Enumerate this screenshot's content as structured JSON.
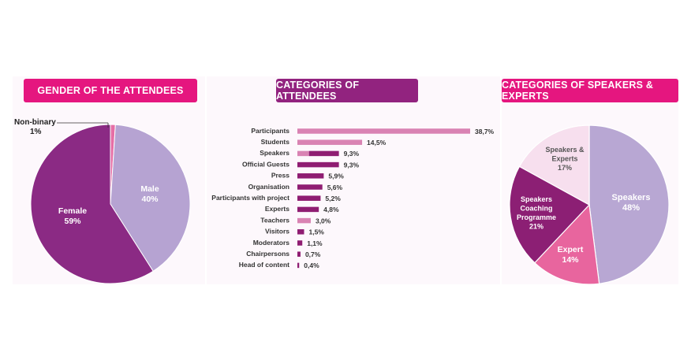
{
  "colors": {
    "magenta": "#e5167f",
    "purple": "#92237f",
    "female": "#8b2a84",
    "male": "#b6a3d2",
    "nonbinary": "#e66fa6",
    "speakers": "#b8a7d3",
    "expert": "#e8659e",
    "coaching": "#8c1f74",
    "speakers_experts": "#f7dfee",
    "bar_dark": "#8f1d72",
    "bar_light": "#d983b3"
  },
  "headers": {
    "gender": "GENDER OF THE ATTENDEES",
    "categories": "CATEGORIES OF ATTENDEES",
    "speakers": "CATEGORIES OF SPEAKERS & EXPERTS"
  },
  "chart_data": [
    {
      "type": "pie",
      "title": "GENDER OF THE ATTENDEES",
      "slices": [
        {
          "label": "Non-binary",
          "value_label": "1%",
          "value": 1
        },
        {
          "label": "Male",
          "value_label": "40%",
          "value": 40
        },
        {
          "label": "Female",
          "value_label": "59%",
          "value": 59
        }
      ]
    },
    {
      "type": "bar",
      "orientation": "horizontal",
      "title": "CATEGORIES OF ATTENDEES",
      "categories": [
        "Participants",
        "Students",
        "Speakers",
        "Official Guests",
        "Press",
        "Organisation",
        "Participants with project",
        "Experts",
        "Teachers",
        "Visitors",
        "Moderators",
        "Chairpersons",
        "Head of content"
      ],
      "values": [
        38.7,
        14.5,
        9.3,
        9.3,
        5.9,
        5.6,
        5.2,
        4.8,
        3.0,
        1.5,
        1.1,
        0.7,
        0.4
      ],
      "value_labels": [
        "38,7%",
        "14,5%",
        "9,3%",
        "9,3%",
        "5,9%",
        "5,6%",
        "5,2%",
        "4,8%",
        "3,0%",
        "1,5%",
        "1,1%",
        "0,7%",
        "0,4%"
      ],
      "highlight": [
        "light",
        "light",
        "mixed",
        "dark",
        "dark",
        "dark",
        "dark",
        "dark",
        "light",
        "dark",
        "dark",
        "dark",
        "dark"
      ]
    },
    {
      "type": "pie",
      "title": "CATEGORIES OF SPEAKERS & EXPERTS",
      "slices": [
        {
          "label": "Speakers",
          "value_label": "48%",
          "value": 48
        },
        {
          "label": "Expert",
          "value_label": "14%",
          "value": 14
        },
        {
          "label": "Speakers Coaching Programme",
          "value_label": "21%",
          "value": 21
        },
        {
          "label": "Speakers & Experts",
          "value_label": "17%",
          "value": 17
        }
      ]
    }
  ]
}
